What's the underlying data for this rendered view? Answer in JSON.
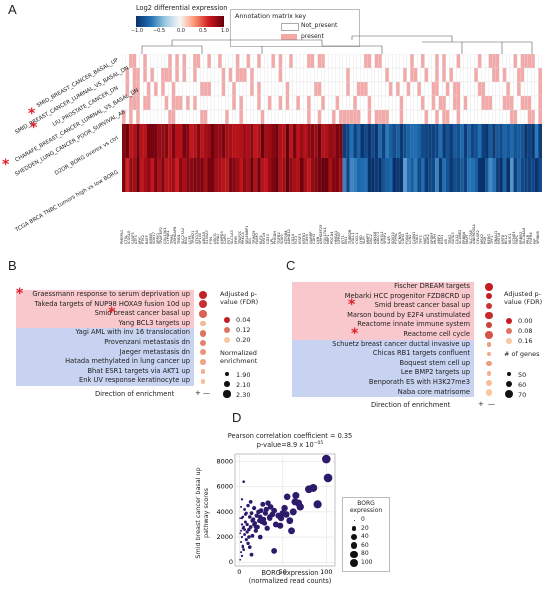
{
  "panelA": {
    "letter": "A",
    "colorbar_title": "Log2 differential expression",
    "colorbar_ticks": [
      "−1.0",
      "−0.5",
      "0.0",
      "0.5",
      "1.0"
    ],
    "legend_title": "Annotation matrix key",
    "legend_items": [
      {
        "label": "Not_present",
        "color": "#ffffff"
      },
      {
        "label": "present",
        "color": "#f4a9a8"
      }
    ],
    "row_labels": [
      "SMID_BREAST_CANCER_BASAL_UP",
      "SMID_BREAST_CANCER_LUMINAL_VS_BASAL_DN",
      "LIU_PROSTATE_CANCER_DN",
      "CHARAFE_BREAST_CANCER_LUMINAL_VS_BASAL_DN",
      "SHEDDEN_LUNG_CANCER_POOR_SURVIVAL_A6",
      "D2OR_BORG overex vs ctrl",
      "TCGA BRCA TNBC tumors high vs low BORG"
    ],
    "starred_rows": [
      0,
      1,
      4
    ],
    "column_labels": [
      "PMEPA1",
      "CTSL",
      "ICOSLG",
      "CASP3",
      "ATF3",
      "MYC",
      "PTK2",
      "BATF",
      "IKBKB",
      "SOX17",
      "SPRY1",
      "TRAF3IP2",
      "COL13A1",
      "CYP4B1",
      "TPM1",
      "ARHGAP8",
      "TNS4",
      "SLC27A2",
      "BSG",
      "LCP1",
      "TRIM21",
      "STK17A",
      "SP100",
      "ABCA5",
      "S100A7",
      "FYN",
      "UGCG",
      "KYNU",
      "AMPD3",
      "CAPG",
      "FST",
      "SLC1A3",
      "MYB",
      "TFAP2C",
      "PRKCA",
      "SELENBP1",
      "ID1",
      "TRIM29",
      "FABP7",
      "ELF5",
      "KRT16",
      "CD53",
      "LPL",
      "PHGDH",
      "TGFB2",
      "SOX9",
      "ATP2B4",
      "ABHD12",
      "CD24",
      "FLT3",
      "IGSF3",
      "KRT81",
      "CD69",
      "GABRP",
      "CDH3",
      "LXN",
      "ARHGEF25",
      "COL17A1",
      "NRP1",
      "PDCD4",
      "HMGA1",
      "GPR87",
      "IFIT1",
      "EN1",
      "TUBB2B",
      "VGLL1",
      "CXCL1",
      "LY6D",
      "SLPI",
      "MMP7",
      "DSC2",
      "ANXA8",
      "ABCC3",
      "CHI3L1",
      "SFRP1",
      "IL4R",
      "SOX10",
      "PTPRC",
      "KCNK5",
      "CDH2",
      "FOXA1",
      "LCN2",
      "CLDN1",
      "TOX3",
      "TFF3",
      "NAT1",
      "AGR2",
      "SPDEF",
      "MLPH",
      "XBP1",
      "ESR1",
      "AR",
      "TBX3",
      "GATA3",
      "CA12",
      "SCUBE2",
      "ERBB4",
      "MAPT",
      "SLC7A8",
      "ANKRD30A",
      "CELSR2",
      "MSX2",
      "PGR",
      "RERG",
      "TFF1",
      "DNALI1",
      "KRT18",
      "KRT8",
      "BCL2",
      "MUC1",
      "CCND1",
      "FBP1",
      "ERBB3",
      "SLC44A4",
      "PRLR",
      "FGFR4",
      "PIP",
      "SPINK8"
    ],
    "colorbar_colors": [
      "#2166ac",
      "#92c5de",
      "#f7f7f7",
      "#f4a582",
      "#b2182b"
    ]
  },
  "panelB": {
    "letter": "B",
    "pathways": [
      "Graessmann response to serum deprivation up",
      "Takeda targets of NUP98 HOXA9 fusion 10d up",
      "Smid breast cancer basal up",
      "Yang BCL3 targets up",
      "Yagi AML with inv 16 translocation",
      "Provenzani metastasis dn",
      "Jaeger metastasis dn",
      "Hatada methylated in lung cancer up",
      "Bhat ESR1 targets via AKT1 up",
      "Enk UV response keratinocyte up"
    ],
    "starred": [
      0,
      2
    ],
    "up_count": 4,
    "fdr": [
      0.005,
      0.02,
      0.08,
      0.18,
      0.1,
      0.12,
      0.14,
      0.16,
      0.17,
      0.19
    ],
    "enrichment": [
      2.3,
      2.25,
      2.2,
      2.0,
      2.15,
      2.1,
      2.05,
      2.0,
      1.95,
      1.95
    ],
    "direction_label": "Direction of enrichment",
    "plus": "+",
    "minus": "—",
    "legend_fdr_title": "Adjusted p-value (FDR)",
    "legend_fdr_values": [
      "0.04",
      "0.12",
      "0.20"
    ],
    "legend_enr_title": "Normalized enrichment",
    "legend_enr_values": [
      "1.90",
      "2.10",
      "2.30"
    ]
  },
  "panelC": {
    "letter": "C",
    "pathways": [
      "Fischer DREAM targets",
      "Mebarki HCC progenitor FZD8CRD up",
      "Smid breast cancer basal up",
      "Marson bound by E2F4 unstimulated",
      "Reactome innate immune system",
      "Reactome cell cycle",
      "Schuetz breast cancer ductal invasive up",
      "Chicas RB1 targets confluent",
      "Boquest stem cell up",
      "Lee BMP2 targets up",
      "Benporath ES with H3K27me3",
      "Naba core matrisome"
    ],
    "starred": [
      2,
      5
    ],
    "up_count": 6,
    "fdr": [
      0.0,
      0.0,
      0.02,
      0.01,
      0.03,
      0.05,
      0.12,
      0.13,
      0.12,
      0.14,
      0.15,
      0.16
    ],
    "genes": [
      70,
      55,
      60,
      65,
      55,
      70,
      45,
      45,
      50,
      45,
      55,
      60
    ],
    "direction_label": "Direction of enrichment",
    "plus": "+",
    "minus": "—",
    "legend_fdr_title": "Adjusted p-value (FDR)",
    "legend_fdr_values": [
      "0.00",
      "0.08",
      "0.16"
    ],
    "legend_genes_title": "# of genes",
    "legend_genes_values": [
      "50",
      "60",
      "70"
    ]
  },
  "panelD": {
    "letter": "D",
    "title_line1": "Pearson correlation coefficient = 0.35",
    "title_line2": "p-value=8.9 x 10",
    "title_exp": "−05",
    "xlabel_line1": "BORG expression",
    "xlabel_line2": "(normalized read counts)",
    "ylabel_line1": "Smid breast cancer basal up",
    "ylabel_line2": "pathway scores",
    "legend_title_line1": "BORG",
    "legend_title_line2": "expression",
    "legend_values": [
      "0",
      "20",
      "40",
      "60",
      "80",
      "100"
    ],
    "point_color": "#2c1a6b",
    "chart_data": {
      "type": "scatter",
      "title": "Pearson correlation coefficient = 0.35",
      "xlabel": "BORG expression (normalized read counts)",
      "ylabel": "Smid breast cancer basal up pathway scores",
      "xlim": [
        -5,
        110
      ],
      "ylim": [
        -300,
        8600
      ],
      "xticks": [
        0,
        50,
        100
      ],
      "yticks": [
        0,
        2000,
        4000,
        6000,
        8000
      ],
      "x": [
        1,
        2,
        2,
        3,
        3,
        4,
        5,
        5,
        6,
        7,
        8,
        9,
        10,
        11,
        12,
        13,
        14,
        15,
        16,
        17,
        18,
        19,
        20,
        22,
        23,
        24,
        25,
        27,
        28,
        30,
        31,
        33,
        35,
        36,
        38,
        40,
        42,
        45,
        47,
        50,
        52,
        55,
        58,
        60,
        62,
        64,
        65,
        70,
        80,
        85,
        90,
        102,
        1,
        1,
        2,
        2,
        3,
        3,
        4,
        4,
        5,
        6,
        7,
        9,
        11,
        13,
        15,
        17,
        19,
        21,
        24,
        26,
        29,
        32,
        35,
        40,
        48,
        54,
        68,
        100,
        3,
        4,
        6,
        8,
        10,
        12,
        14
      ],
      "y": [
        200,
        800,
        2500,
        3500,
        5000,
        1200,
        6400,
        2800,
        4200,
        3800,
        1800,
        3000,
        4500,
        2600,
        3600,
        4800,
        3900,
        2100,
        3400,
        4300,
        3100,
        2800,
        3700,
        4000,
        3300,
        3600,
        4100,
        4600,
        3400,
        3900,
        4200,
        4700,
        3500,
        4400,
        3800,
        4100,
        3000,
        3700,
        2900,
        3900,
        4300,
        5200,
        3300,
        2500,
        4000,
        4800,
        5300,
        4400,
        5800,
        5900,
        4600,
        6700,
        3500,
        2300,
        1600,
        4400,
        3000,
        2000,
        2700,
        3600,
        1000,
        2600,
        3200,
        2400,
        2000,
        2800,
        3300,
        3000,
        2500,
        2800,
        2000,
        3200,
        3100,
        2700,
        3600,
        900,
        3500,
        3800,
        4700,
        8200,
        500,
        1300,
        2200,
        3900,
        1500,
        1200,
        600
      ],
      "size_encoding": "BORG expression"
    }
  }
}
